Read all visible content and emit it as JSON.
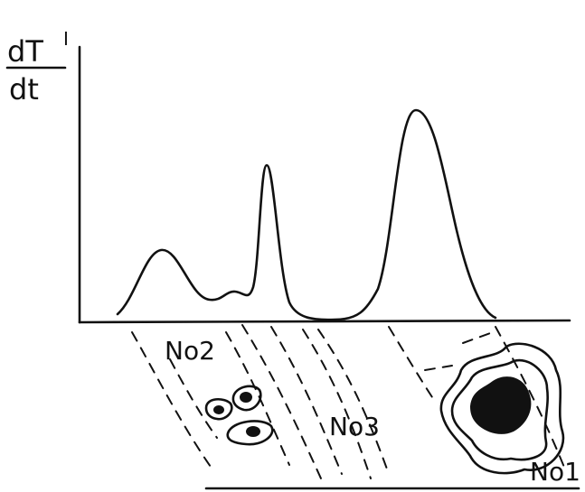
{
  "y_label": {
    "numerator": "dT",
    "superscript": "I",
    "denominator": "dt"
  },
  "zones": [
    "No2",
    "No3",
    "No1"
  ]
}
